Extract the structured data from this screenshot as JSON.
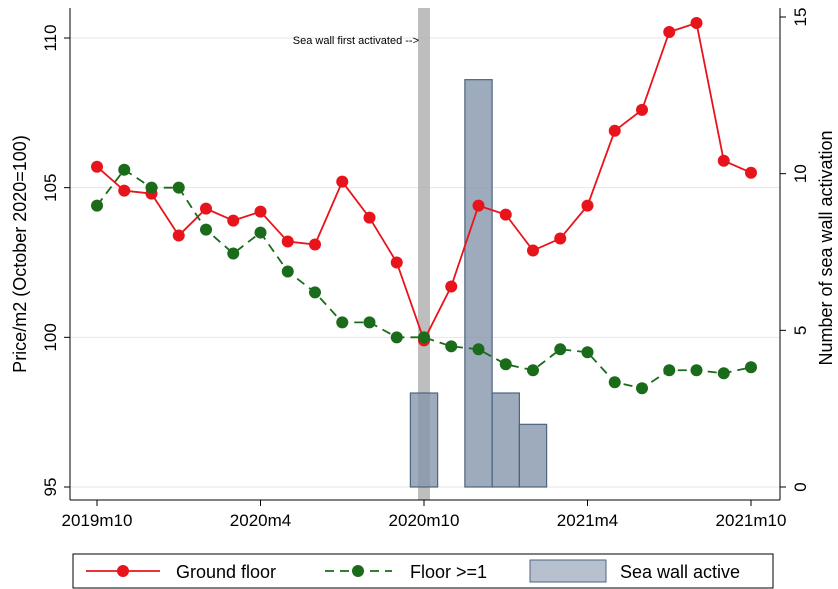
{
  "chart_data": {
    "type": "line",
    "x": [
      "2019m10",
      "2019m11",
      "2019m12",
      "2020m1",
      "2020m2",
      "2020m3",
      "2020m4",
      "2020m5",
      "2020m6",
      "2020m7",
      "2020m8",
      "2020m9",
      "2020m10",
      "2020m11",
      "2020m12",
      "2021m1",
      "2021m2",
      "2021m3",
      "2021m4",
      "2021m5",
      "2021m6",
      "2021m7",
      "2021m8",
      "2021m9",
      "2021m10"
    ],
    "x_tick_labels": [
      "2019m10",
      "2020m4",
      "2020m10",
      "2021m4",
      "2021m10"
    ],
    "series": [
      {
        "name": "Ground floor",
        "axis": "left",
        "color": "#e8141b",
        "style": "solid",
        "values": [
          105.7,
          104.9,
          104.8,
          103.4,
          104.3,
          103.9,
          104.2,
          103.2,
          103.1,
          105.2,
          104.0,
          102.5,
          99.9,
          101.7,
          104.4,
          104.1,
          102.9,
          103.3,
          104.4,
          106.9,
          107.6,
          110.2,
          110.5,
          105.9,
          105.5
        ]
      },
      {
        "name": "Floor >=1",
        "axis": "left",
        "color": "#1a6b1a",
        "style": "dashed",
        "values": [
          104.4,
          105.6,
          105.0,
          105.0,
          103.6,
          102.8,
          103.5,
          102.2,
          101.5,
          100.5,
          100.5,
          100.0,
          100.0,
          99.7,
          99.6,
          99.1,
          98.9,
          99.6,
          99.5,
          98.5,
          98.3,
          98.9,
          98.9,
          98.8,
          99.0
        ]
      }
    ],
    "bars": {
      "name": "Sea wall active",
      "axis": "right",
      "color": "#8596ad",
      "values": [
        0,
        0,
        0,
        0,
        0,
        0,
        0,
        0,
        0,
        0,
        0,
        0,
        3,
        0,
        13,
        3,
        2,
        0,
        0,
        0,
        0,
        0,
        0,
        0,
        0
      ]
    },
    "ylabel": "Price/m2 (October 2020=100)",
    "ylabel2": "Number of sea wall activation",
    "ylim": [
      95,
      110
    ],
    "yticks": [
      95,
      100,
      105,
      110
    ],
    "ylim2": [
      0,
      15
    ],
    "yticks2": [
      0,
      5,
      10,
      15
    ],
    "annotation": {
      "text": "Sea wall first activated -->",
      "at_x": "2020m10"
    },
    "grid": "horizontal",
    "legend_position": "bottom"
  },
  "legend": {
    "items": [
      "Ground floor",
      "Floor >=1",
      "Sea wall active"
    ]
  }
}
